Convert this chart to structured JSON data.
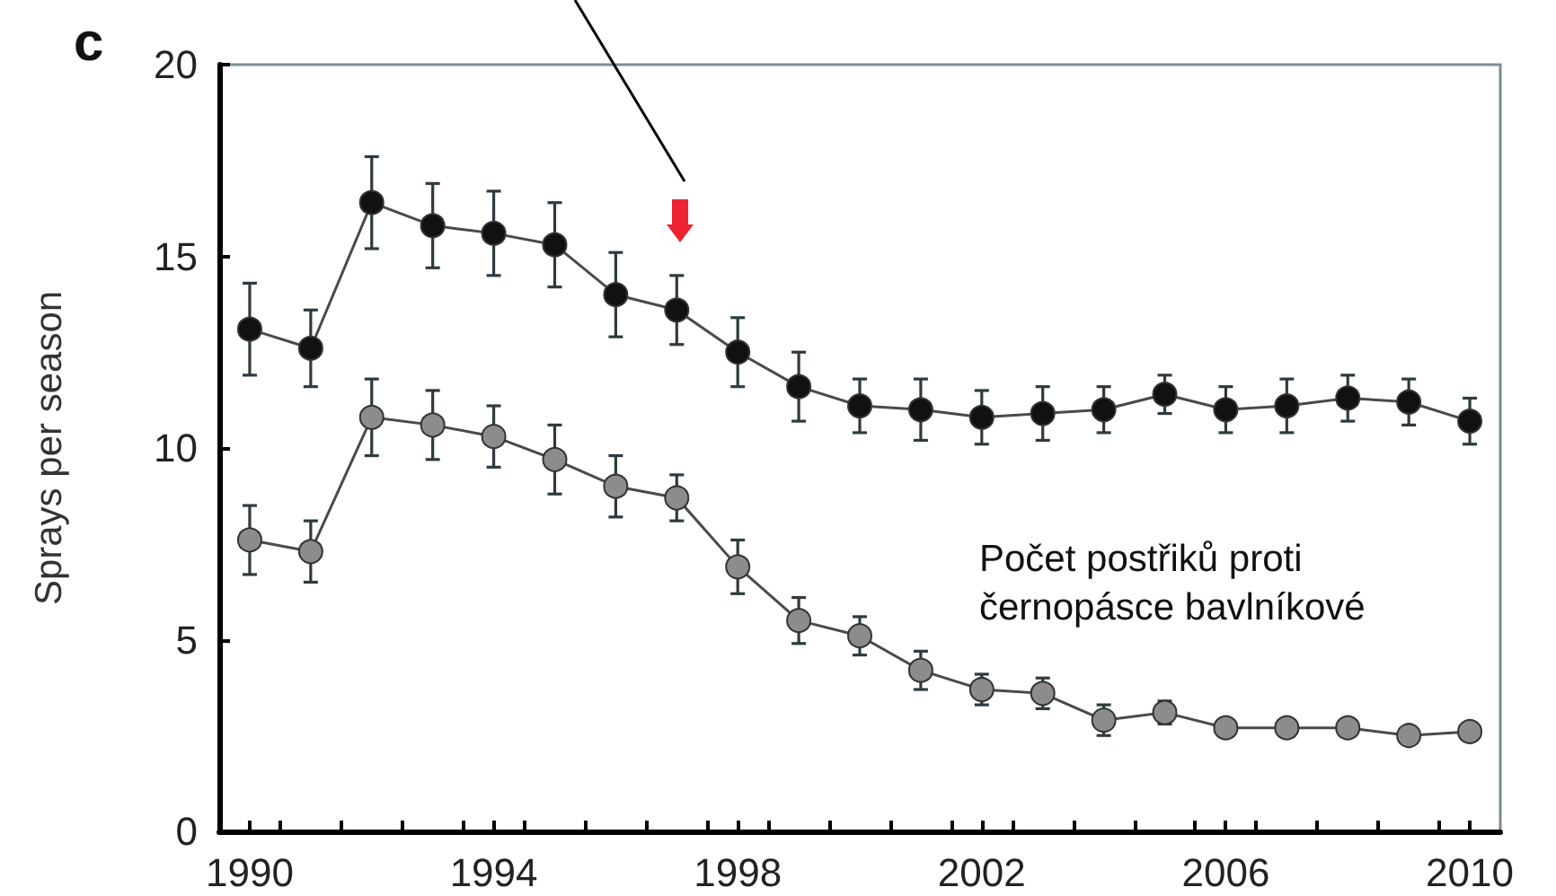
{
  "chart_data": {
    "type": "line",
    "title": "c",
    "ylabel": "Sprays per season",
    "x": [
      1990,
      1991,
      1992,
      1993,
      1994,
      1995,
      1996,
      1997,
      1998,
      1999,
      2000,
      2001,
      2002,
      2003,
      2004,
      2005,
      2006,
      2007,
      2008,
      2009,
      2010
    ],
    "series": [
      {
        "color": "#111111",
        "values": [
          13.1,
          12.6,
          16.4,
          15.8,
          15.6,
          15.3,
          14.0,
          13.6,
          12.5,
          11.6,
          11.1,
          11.0,
          10.8,
          10.9,
          11.0,
          11.4,
          11.0,
          11.1,
          11.3,
          11.2,
          10.7
        ],
        "errors": [
          1.2,
          1.0,
          1.2,
          1.1,
          1.1,
          1.1,
          1.1,
          0.9,
          0.9,
          0.9,
          0.7,
          0.8,
          0.7,
          0.7,
          0.6,
          0.5,
          0.6,
          0.7,
          0.6,
          0.6,
          0.6
        ]
      },
      {
        "color": "#8c8c8c",
        "values": [
          7.6,
          7.3,
          10.8,
          10.6,
          10.3,
          9.7,
          9.0,
          8.7,
          6.9,
          5.5,
          5.1,
          4.2,
          3.7,
          3.6,
          2.9,
          3.1,
          2.7,
          2.7,
          2.7,
          2.5,
          2.6
        ],
        "errors": [
          0.9,
          0.8,
          1.0,
          0.9,
          0.8,
          0.9,
          0.8,
          0.6,
          0.7,
          0.6,
          0.5,
          0.5,
          0.4,
          0.4,
          0.4,
          0.3,
          null,
          null,
          null,
          null,
          null
        ]
      }
    ],
    "xlim": [
      1989.5,
      2010.5
    ],
    "xticks": [
      1990,
      1994,
      1998,
      2002,
      2006,
      2010,
      {
        "value": 1990.5,
        "label": null
      },
      {
        "value": 1991.5,
        "label": null
      },
      {
        "value": 1992.5,
        "label": null
      },
      {
        "value": 1993.5,
        "label": null
      },
      {
        "value": 1994.5,
        "label": null
      },
      {
        "value": 1995.5,
        "label": null
      },
      {
        "value": 1996.5,
        "label": null
      },
      {
        "value": 1997.5,
        "label": null
      },
      {
        "value": 1998.5,
        "label": null
      },
      {
        "value": 1999.5,
        "label": null
      },
      {
        "value": 2000.5,
        "label": null
      },
      {
        "value": 2001.5,
        "label": null
      },
      {
        "value": 2002.5,
        "label": null
      },
      {
        "value": 2003.5,
        "label": null
      },
      {
        "value": 2004.5,
        "label": null
      },
      {
        "value": 2005.5,
        "label": null
      },
      {
        "value": 2006.5,
        "label": null
      },
      {
        "value": 2007.5,
        "label": null
      },
      {
        "value": 2008.5,
        "label": null
      },
      {
        "value": 2009.5,
        "label": null
      }
    ],
    "ylim": [
      0,
      20
    ],
    "yticks": [
      0,
      5,
      10,
      15,
      20
    ],
    "marker": "circle",
    "line_style": "solid",
    "annotations": [
      "Počet postřiků proti černopásce bavlníkové"
    ]
  }
}
